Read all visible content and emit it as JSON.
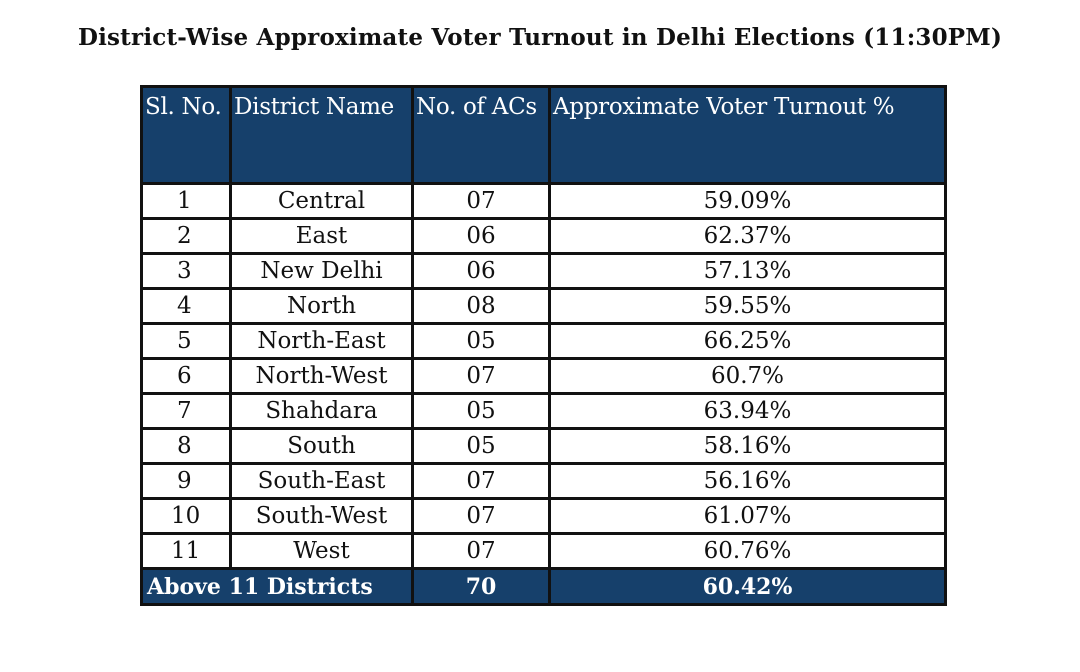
{
  "title": "District-Wise Approximate Voter Turnout in Delhi Elections (11:30PM)",
  "table": {
    "headers": {
      "sl_no": "Sl. No.",
      "district_name": "District Name",
      "no_of_acs": "No. of ACs",
      "turnout": "Approximate Voter Turnout %"
    },
    "rows": [
      {
        "sl": "1",
        "district": "Central",
        "acs": "07",
        "turnout": "59.09%"
      },
      {
        "sl": "2",
        "district": "East",
        "acs": "06",
        "turnout": "62.37%"
      },
      {
        "sl": "3",
        "district": "New Delhi",
        "acs": "06",
        "turnout": "57.13%"
      },
      {
        "sl": "4",
        "district": "North",
        "acs": "08",
        "turnout": "59.55%"
      },
      {
        "sl": "5",
        "district": "North-East",
        "acs": "05",
        "turnout": "66.25%"
      },
      {
        "sl": "6",
        "district": "North-West",
        "acs": "07",
        "turnout": "60.7%"
      },
      {
        "sl": "7",
        "district": "Shahdara",
        "acs": "05",
        "turnout": "63.94%"
      },
      {
        "sl": "8",
        "district": "South",
        "acs": "05",
        "turnout": "58.16%"
      },
      {
        "sl": "9",
        "district": "South-East",
        "acs": "07",
        "turnout": "56.16%"
      },
      {
        "sl": "10",
        "district": "South-West",
        "acs": "07",
        "turnout": "61.07%"
      },
      {
        "sl": "11",
        "district": "West",
        "acs": "07",
        "turnout": "60.76%"
      }
    ],
    "total": {
      "label": "Above 11 Districts",
      "acs": "70",
      "turnout": "60.42%"
    }
  },
  "colors": {
    "header_background": "#16406b",
    "header_text": "#ffffff",
    "border": "#111111"
  }
}
